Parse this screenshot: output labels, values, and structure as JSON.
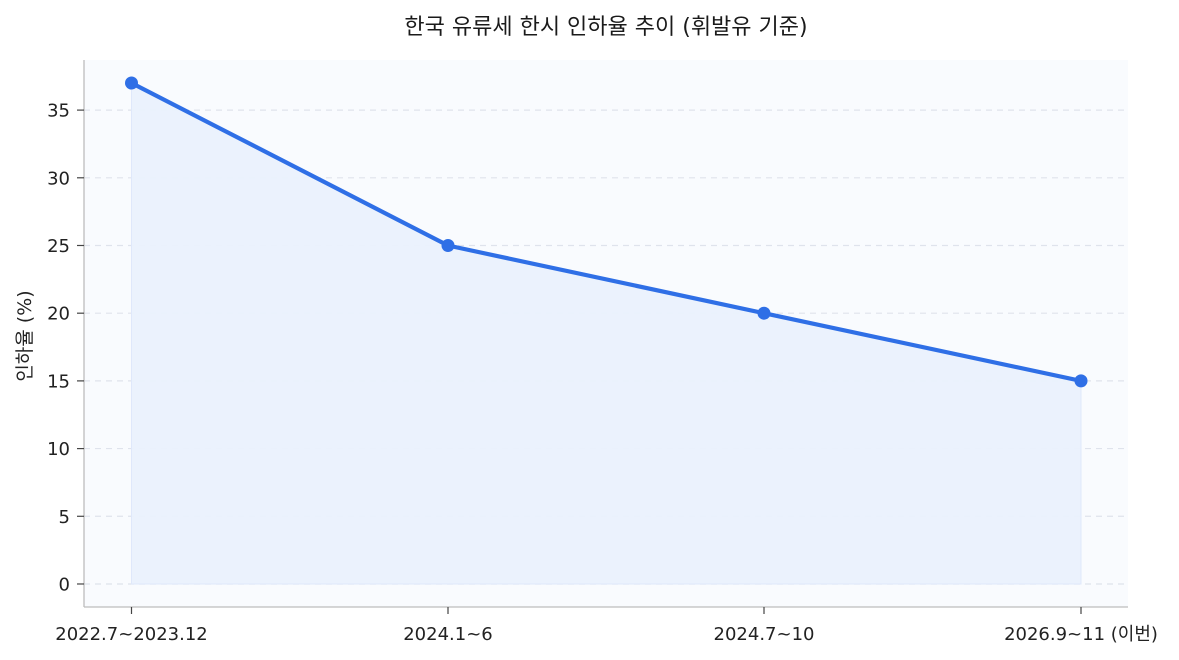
{
  "chart_data": {
    "type": "area",
    "title": "한국 유류세 한시 인하율 추이 (휘발유 기준)",
    "xlabel": "",
    "ylabel": "인하율 (%)",
    "categories": [
      "2022.7~2023.12",
      "2024.1~6",
      "2024.7~10",
      "2026.9~11 (이번)"
    ],
    "series": [
      {
        "values": [
          37,
          25,
          20,
          15
        ]
      }
    ],
    "ylim": [
      -1.7,
      38.7
    ],
    "yticks": [
      0,
      5,
      10,
      15,
      20,
      25,
      30,
      35
    ],
    "grid": true,
    "legend": "none",
    "colors": {
      "line": "#2f6fe6",
      "marker": "#2f6fe6",
      "fill": "#eaf1fd",
      "plot_bg": "#f9fbfe",
      "grid": "#dfe3ec",
      "axis": "#bdbdbd"
    }
  }
}
